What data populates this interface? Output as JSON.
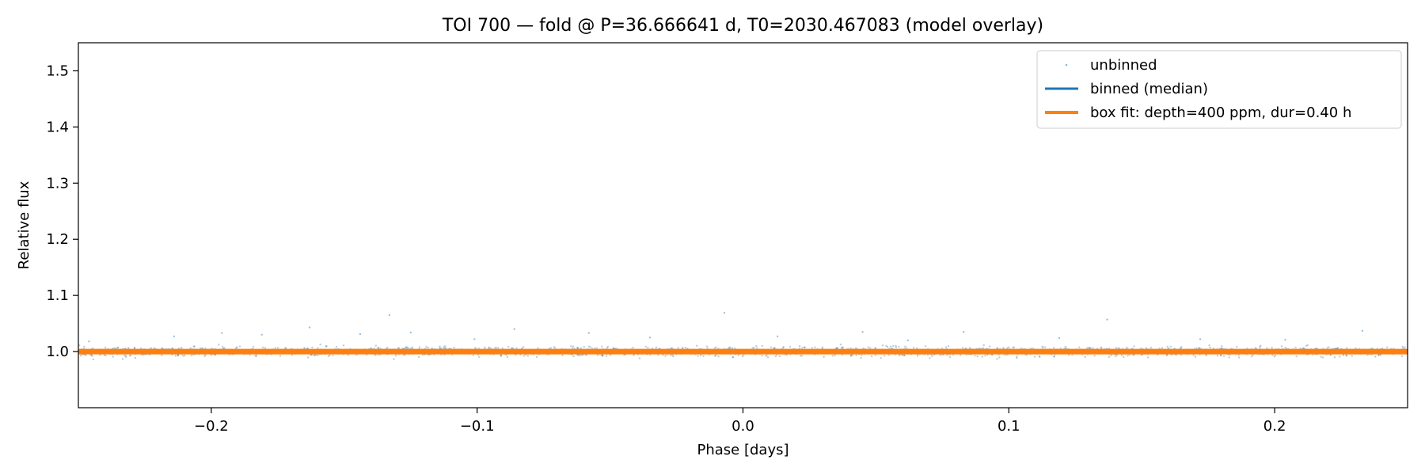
{
  "chart_data": {
    "type": "scatter",
    "title": "TOI 700 — fold @ P=36.666641 d, T0=2030.467083 (model overlay)",
    "xlabel": "Phase [days]",
    "ylabel": "Relative flux",
    "xlim": [
      -0.25,
      0.25
    ],
    "ylim": [
      0.9,
      1.55
    ],
    "xticks": [
      -0.2,
      -0.1,
      0.0,
      0.1,
      0.2
    ],
    "xtick_labels": [
      "−0.2",
      "−0.1",
      "0.0",
      "0.1",
      "0.2"
    ],
    "yticks": [
      1.0,
      1.1,
      1.2,
      1.3,
      1.4,
      1.5
    ],
    "ytick_labels": [
      "1.0",
      "1.1",
      "1.2",
      "1.3",
      "1.4",
      "1.5"
    ],
    "grid": false,
    "legend_position": "top-right",
    "series": [
      {
        "name": "unbinned",
        "kind": "points",
        "color": "#1f77b4",
        "baseline": 1.0,
        "scatter_sigma": 0.004,
        "outliers": [
          {
            "x": -0.133,
            "y": 1.065
          },
          {
            "x": -0.007,
            "y": 1.069
          },
          {
            "x": 0.137,
            "y": 1.057
          },
          {
            "x": -0.163,
            "y": 1.043
          },
          {
            "x": -0.086,
            "y": 1.04
          },
          {
            "x": 0.233,
            "y": 1.037
          },
          {
            "x": -0.196,
            "y": 1.033
          },
          {
            "x": 0.045,
            "y": 1.035
          },
          {
            "x": 0.083,
            "y": 1.035
          },
          {
            "x": -0.125,
            "y": 1.034
          },
          {
            "x": -0.058,
            "y": 1.033
          },
          {
            "x": -0.144,
            "y": 1.031
          },
          {
            "x": -0.181,
            "y": 1.03
          },
          {
            "x": -0.214,
            "y": 1.027
          },
          {
            "x": 0.013,
            "y": 1.027
          },
          {
            "x": -0.035,
            "y": 1.025
          },
          {
            "x": 0.119,
            "y": 1.024
          },
          {
            "x": 0.172,
            "y": 1.022
          },
          {
            "x": 0.204,
            "y": 1.021
          },
          {
            "x": -0.101,
            "y": 1.022
          },
          {
            "x": 0.062,
            "y": 1.02
          },
          {
            "x": -0.246,
            "y": 1.018
          }
        ]
      },
      {
        "name": "binned (median)",
        "kind": "line",
        "color": "#1f77b4",
        "x": [
          -0.25,
          0.25
        ],
        "y": [
          1.0,
          1.0
        ]
      },
      {
        "name": "box fit: depth=400 ppm, dur=0.40 h",
        "kind": "line",
        "color": "#ff7f0e",
        "x": [
          -0.25,
          0.25
        ],
        "y": [
          1.0,
          1.0
        ]
      }
    ]
  }
}
